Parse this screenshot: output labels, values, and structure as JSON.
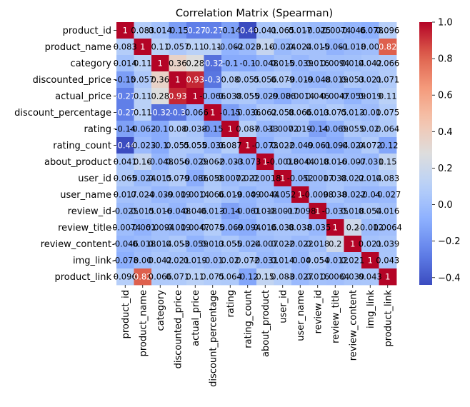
{
  "chart_data": {
    "type": "heatmap",
    "title": "Correlation Matrix (Spearman)",
    "xlabel": "",
    "ylabel": "",
    "labels": [
      "product_id",
      "product_name",
      "category",
      "discounted_price",
      "actual_price",
      "discount_percentage",
      "rating",
      "rating_count",
      "about_product",
      "user_id",
      "user_name",
      "review_id",
      "review_title",
      "review_content",
      "img_link",
      "product_link"
    ],
    "values": [
      [
        1,
        0.083,
        0.014,
        -0.15,
        -0.27,
        -0.27,
        -0.14,
        -0.44,
        0.041,
        0.065,
        0.017,
        -0.025,
        -0.0074,
        -0.046,
        -0.078,
        0.096
      ],
      [
        0.083,
        1,
        0.11,
        0.057,
        0.11,
        0.11,
        -0.062,
        -0.023,
        0.16,
        -0.024,
        0.024,
        0.015,
        -0.061,
        -0.018,
        0.0,
        0.82
      ],
      [
        0.014,
        0.11,
        1,
        0.36,
        0.28,
        -0.32,
        -0.1,
        -0.1,
        -0.048,
        0.015,
        -0.039,
        0.016,
        0.0094,
        0.014,
        0.042,
        0.066
      ],
      [
        -0.15,
        0.057,
        0.36,
        1,
        0.93,
        -0.3,
        0.08,
        0.055,
        0.056,
        0.079,
        -0.019,
        -0.048,
        -0.019,
        0.053,
        0.021,
        0.071
      ],
      [
        -0.27,
        0.11,
        0.28,
        0.93,
        1,
        -0.066,
        0.038,
        0.055,
        -0.029,
        -0.086,
        0.0014,
        0.046,
        0.0047,
        -0.059,
        0.019,
        0.11
      ],
      [
        -0.27,
        0.11,
        -0.32,
        -0.3,
        -0.066,
        1,
        -0.15,
        -0.036,
        0.062,
        0.058,
        0.066,
        0.013,
        0.075,
        0.013,
        -0.01,
        0.075
      ],
      [
        -0.14,
        -0.062,
        -0.1,
        0.08,
        0.038,
        -0.15,
        1,
        0.087,
        -0.033,
        -0.0072,
        0.019,
        -0.14,
        -0.069,
        0.055,
        0.02,
        0.064
      ],
      [
        -0.44,
        -0.023,
        -0.1,
        0.055,
        0.055,
        -0.036,
        0.087,
        1,
        -0.073,
        0.022,
        -0.049,
        -0.061,
        -0.094,
        -0.024,
        0.072,
        -0.12
      ],
      [
        0.041,
        0.16,
        -0.048,
        0.056,
        -0.029,
        0.062,
        -0.033,
        -0.073,
        1,
        -0.0018,
        0.0044,
        0.018,
        0.016,
        -0.007,
        -0.031,
        0.15
      ],
      [
        0.065,
        -0.024,
        0.015,
        0.079,
        -0.086,
        0.058,
        -0.0072,
        0.022,
        -0.0018,
        1,
        -0.052,
        -0.0017,
        0.038,
        0.022,
        0.014,
        0.083
      ],
      [
        0.017,
        0.024,
        -0.039,
        -0.019,
        0.0014,
        0.066,
        0.019,
        -0.049,
        0.0044,
        -0.052,
        1,
        -0.0098,
        0.038,
        -0.022,
        -0.04,
        -0.027
      ],
      [
        -0.025,
        0.015,
        0.016,
        -0.048,
        0.046,
        0.013,
        -0.14,
        -0.061,
        0.018,
        -0.0017,
        -0.0098,
        1,
        -0.035,
        0.018,
        0.054,
        0.016
      ],
      [
        -0.0074,
        -0.061,
        0.0094,
        -0.019,
        0.0047,
        0.075,
        -0.069,
        -0.094,
        0.016,
        0.038,
        0.038,
        -0.035,
        1,
        0.2,
        -0.012,
        0.0064
      ],
      [
        -0.046,
        -0.018,
        0.014,
        0.053,
        -0.059,
        0.013,
        0.055,
        -0.024,
        -0.007,
        0.022,
        -0.022,
        0.018,
        0.2,
        1,
        0.021,
        0.039
      ],
      [
        -0.078,
        0.0,
        0.042,
        0.021,
        0.019,
        -0.01,
        0.02,
        0.072,
        -0.031,
        0.014,
        -0.04,
        0.054,
        -0.012,
        0.021,
        1,
        0.043
      ],
      [
        0.096,
        0.82,
        0.066,
        0.071,
        0.11,
        0.075,
        0.064,
        -0.12,
        0.15,
        0.083,
        -0.027,
        0.016,
        0.0064,
        0.039,
        0.043,
        1
      ]
    ],
    "cell_labels": [
      [
        "1",
        "0.083",
        "0.014",
        "-0.15",
        "-0.27",
        "-0.27",
        "-0.14",
        "-0.44",
        "0.041",
        "0.065",
        "0.017",
        "-0.025",
        "-0.0074",
        "-0.046",
        "-0.078",
        "0.096"
      ],
      [
        "0.083",
        "1",
        "0.11",
        "0.057",
        "0.11",
        "0.11",
        "-0.062",
        "-0.023",
        "0.16",
        "-0.024",
        "0.024",
        "0.015",
        "-0.061",
        "-0.018",
        "0.00",
        "0.82"
      ],
      [
        "0.014",
        "0.11",
        "1",
        "0.36",
        "0.28",
        "-0.32",
        "-0.1",
        "-0.1",
        "-0.048",
        "0.015",
        "-0.039",
        "0.016",
        "0.0094",
        "0.014",
        "0.042",
        "0.066"
      ],
      [
        "-0.15",
        "0.057",
        "0.36",
        "1",
        "0.93",
        "-0.3",
        "0.08",
        "0.055",
        "0.056",
        "0.079",
        "-0.019",
        "-0.048",
        "-0.019",
        "0.053",
        "0.021",
        "0.071"
      ],
      [
        "-0.27",
        "0.11",
        "0.28",
        "0.93",
        "1",
        "-0.066",
        "0.038",
        "0.055",
        "-0.029",
        "-0.086",
        "0.0014",
        "0.046",
        "0.0047",
        "-0.059",
        "0.019",
        "0.11"
      ],
      [
        "-0.27",
        "0.11",
        "-0.32",
        "-0.3",
        "-0.066",
        "1",
        "-0.15",
        "-0.036",
        "0.062",
        "0.058",
        "0.066",
        "0.013",
        "0.075",
        "0.013",
        "-0.01",
        "0.075"
      ],
      [
        "-0.14",
        "-0.062",
        "-0.1",
        "0.08",
        "0.038",
        "-0.15",
        "1",
        "0.087",
        "-0.033",
        "-0.0072",
        "0.019",
        "-0.14",
        "-0.069",
        "0.055",
        "0.02",
        "0.064"
      ],
      [
        "-0.44",
        "-0.023",
        "-0.1",
        "0.055",
        "0.055",
        "-0.036",
        "0.087",
        "1",
        "-0.073",
        "0.022",
        "-0.049",
        "-0.061",
        "-0.094",
        "-0.024",
        "0.072",
        "-0.12"
      ],
      [
        "0.041",
        "0.16",
        "-0.048",
        "0.056",
        "-0.029",
        "0.062",
        "-0.033",
        "-0.073",
        "1",
        "-0.0018",
        "0.0044",
        "0.018",
        "0.016",
        "-0.007",
        "-0.031",
        "0.15"
      ],
      [
        "0.065",
        "-0.024",
        "0.015",
        "0.079",
        "-0.086",
        "0.058",
        "-0.0072",
        "0.022",
        "-0.0018",
        "1",
        "-0.052",
        "-0.0017",
        "0.038",
        "0.022",
        "0.014",
        "0.083"
      ],
      [
        "0.017",
        "0.024",
        "-0.039",
        "-0.019",
        "0.0014",
        "0.066",
        "0.019",
        "-0.049",
        "0.0044",
        "-0.052",
        "1",
        "-0.0098",
        "0.038",
        "-0.022",
        "-0.04",
        "-0.027"
      ],
      [
        "-0.025",
        "0.015",
        "0.016",
        "-0.048",
        "0.046",
        "0.013",
        "-0.14",
        "-0.061",
        "0.018",
        "-0.0017",
        "-0.0098",
        "1",
        "-0.035",
        "0.018",
        "0.054",
        "0.016"
      ],
      [
        "-0.0074",
        "-0.061",
        "0.0094",
        "-0.019",
        "0.0047",
        "0.075",
        "-0.069",
        "-0.094",
        "0.016",
        "0.038",
        "0.038",
        "-0.035",
        "1",
        "0.2",
        "-0.012",
        "0.0064"
      ],
      [
        "-0.046",
        "-0.018",
        "0.014",
        "0.053",
        "-0.059",
        "0.013",
        "0.055",
        "-0.024",
        "-0.007",
        "0.022",
        "-0.022",
        "0.018",
        "0.2",
        "1",
        "0.021",
        "0.039"
      ],
      [
        "-0.078",
        "0.00",
        "0.042",
        "0.021",
        "0.019",
        "-0.01",
        "0.02",
        "0.072",
        "-0.031",
        "0.014",
        "-0.04",
        "0.054",
        "-0.012",
        "0.021",
        "1",
        "0.043"
      ],
      [
        "0.096",
        "0.82",
        "0.066",
        "0.071",
        "0.11",
        "0.075",
        "0.064",
        "-0.12",
        "0.15",
        "0.083",
        "-0.027",
        "0.016",
        "0.0064",
        "0.039",
        "0.043",
        "1"
      ]
    ],
    "colormap": "coolwarm",
    "vmin": -0.44,
    "vmax": 1,
    "colorbar_ticks": [
      -0.4,
      -0.2,
      0.0,
      0.2,
      0.4,
      0.6,
      0.8,
      1.0
    ],
    "colorbar_tick_labels": [
      "−0.4",
      "−0.2",
      "0.0",
      "0.2",
      "0.4",
      "0.6",
      "0.8",
      "1.0"
    ]
  }
}
